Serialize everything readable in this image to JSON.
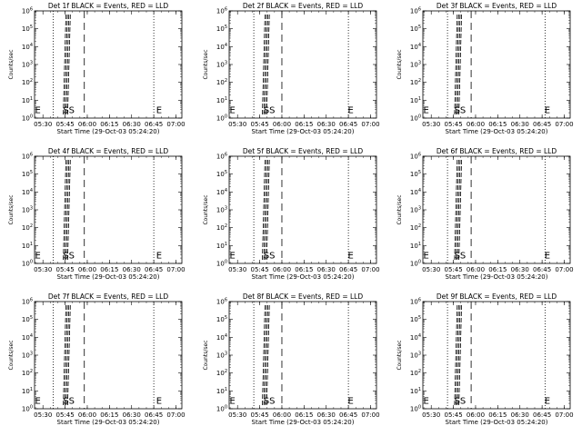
{
  "chart_data": [
    {
      "type": "line",
      "title": "Det 1f BLACK = Events, RED = LLD",
      "xlabel": "Start Time (29-Oct-03 05:24:20)",
      "ylabel": "Counts/sec",
      "x_tick_labels": [
        "05:30",
        "05:45",
        "06:00",
        "06:15",
        "06:30",
        "06:45",
        "07:00"
      ],
      "y_tick_labels": [
        "10^0",
        "10^1",
        "10^2",
        "10^3",
        "10^4",
        "10^5",
        "10^6"
      ],
      "y_scale": "log",
      "ylim": [
        1,
        1000000
      ],
      "xlim": [
        "05:24:20",
        "07:04"
      ],
      "vertical_lines": [
        {
          "x": "05:37",
          "style": "dotted"
        },
        {
          "x": "05:45",
          "style": "dashed-cluster"
        },
        {
          "x": "05:58",
          "style": "dashed"
        },
        {
          "x": "06:45",
          "style": "dotted"
        }
      ],
      "annotations": [
        {
          "text": "E",
          "x": "05:24",
          "y": 3
        },
        {
          "text": "E",
          "x": "06:46",
          "y": 3
        },
        {
          "text": "SS",
          "x": "05:43",
          "y": 3
        }
      ]
    },
    {
      "type": "line",
      "title": "Det 2f BLACK = Events, RED = LLD",
      "xlabel": "Start Time (29-Oct-03 05:24:20)",
      "ylabel": "Counts/sec",
      "x_tick_labels": [
        "05:30",
        "05:45",
        "06:00",
        "06:15",
        "06:30",
        "06:45",
        "07:00"
      ],
      "y_tick_labels": [
        "10^0",
        "10^1",
        "10^2",
        "10^3",
        "10^4",
        "10^5",
        "10^6"
      ],
      "y_scale": "log",
      "ylim": [
        1,
        1000000
      ],
      "xlim": [
        "05:24:20",
        "07:04"
      ],
      "vertical_lines": [
        {
          "x": "05:41",
          "style": "dotted"
        },
        {
          "x": "05:48",
          "style": "dashed-cluster"
        },
        {
          "x": "06:00",
          "style": "dashed"
        },
        {
          "x": "06:45",
          "style": "dotted"
        }
      ],
      "annotations": [
        {
          "text": "E",
          "x": "05:24",
          "y": 3
        },
        {
          "text": "E",
          "x": "06:44",
          "y": 3
        },
        {
          "text": "SS",
          "x": "05:47",
          "y": 3
        }
      ]
    },
    {
      "type": "line",
      "title": "Det 3f BLACK = Events, RED = LLD",
      "xlabel": "Start Time (29-Oct-03 05:24:20)",
      "ylabel": "Counts/sec",
      "x_tick_labels": [
        "05:30",
        "05:45",
        "06:00",
        "06:15",
        "06:30",
        "06:45",
        "07:00"
      ],
      "y_tick_labels": [
        "10^0",
        "10^1",
        "10^2",
        "10^3",
        "10^4",
        "10^5",
        "10^6"
      ],
      "y_scale": "log",
      "ylim": [
        1,
        1000000
      ],
      "xlim": [
        "05:24:20",
        "07:04"
      ],
      "vertical_lines": [
        {
          "x": "05:41",
          "style": "dotted"
        },
        {
          "x": "05:47",
          "style": "dashed-cluster"
        },
        {
          "x": "05:57",
          "style": "dashed"
        },
        {
          "x": "06:47",
          "style": "dotted"
        }
      ],
      "annotations": [
        {
          "text": "E",
          "x": "05:24",
          "y": 3
        },
        {
          "text": "E",
          "x": "06:46",
          "y": 3
        },
        {
          "text": "SS",
          "x": "05:45",
          "y": 3
        }
      ]
    },
    {
      "type": "line",
      "title": "Det 4f BLACK = Events, RED = LLD",
      "xlabel": "Start Time (29-Oct-03 05:24:20)",
      "ylabel": "Counts/sec",
      "x_tick_labels": [
        "05:30",
        "05:45",
        "06:00",
        "06:15",
        "06:30",
        "06:45",
        "07:00"
      ],
      "y_tick_labels": [
        "10^0",
        "10^1",
        "10^2",
        "10^3",
        "10^4",
        "10^5",
        "10^6"
      ],
      "y_scale": "log",
      "ylim": [
        1,
        1000000
      ],
      "xlim": [
        "05:24:20",
        "07:04"
      ],
      "vertical_lines": [
        {
          "x": "05:37",
          "style": "dotted"
        },
        {
          "x": "05:45",
          "style": "dashed-cluster"
        },
        {
          "x": "05:58",
          "style": "dashed"
        },
        {
          "x": "06:45",
          "style": "dotted"
        }
      ],
      "annotations": [
        {
          "text": "E",
          "x": "05:24",
          "y": 3
        },
        {
          "text": "E",
          "x": "06:46",
          "y": 3
        },
        {
          "text": "SS",
          "x": "05:43",
          "y": 3
        }
      ]
    },
    {
      "type": "line",
      "title": "Det 5f BLACK = Events, RED = LLD",
      "xlabel": "Start Time (29-Oct-03 05:24:20)",
      "ylabel": "Counts/sec",
      "x_tick_labels": [
        "05:30",
        "05:45",
        "06:00",
        "06:15",
        "06:30",
        "06:45",
        "07:00"
      ],
      "y_tick_labels": [
        "10^0",
        "10^1",
        "10^2",
        "10^3",
        "10^4",
        "10^5",
        "10^6"
      ],
      "y_scale": "log",
      "ylim": [
        1,
        1000000
      ],
      "xlim": [
        "05:24:20",
        "07:04"
      ],
      "vertical_lines": [
        {
          "x": "05:41",
          "style": "dotted"
        },
        {
          "x": "05:48",
          "style": "dashed-cluster"
        },
        {
          "x": "06:00",
          "style": "dashed"
        },
        {
          "x": "06:45",
          "style": "dotted"
        }
      ],
      "annotations": [
        {
          "text": "E",
          "x": "05:24",
          "y": 3
        },
        {
          "text": "E",
          "x": "06:44",
          "y": 3
        },
        {
          "text": "SS",
          "x": "05:47",
          "y": 3
        }
      ]
    },
    {
      "type": "line",
      "title": "Det 6f BLACK = Events, RED = LLD",
      "xlabel": "Start Time (29-Oct-03 05:24:20)",
      "ylabel": "Counts/sec",
      "x_tick_labels": [
        "05:30",
        "05:45",
        "06:00",
        "06:15",
        "06:30",
        "06:45",
        "07:00"
      ],
      "y_tick_labels": [
        "10^0",
        "10^1",
        "10^2",
        "10^3",
        "10^4",
        "10^5",
        "10^6"
      ],
      "y_scale": "log",
      "ylim": [
        1,
        1000000
      ],
      "xlim": [
        "05:24:20",
        "07:04"
      ],
      "vertical_lines": [
        {
          "x": "05:41",
          "style": "dotted"
        },
        {
          "x": "05:47",
          "style": "dashed-cluster"
        },
        {
          "x": "05:57",
          "style": "dashed"
        },
        {
          "x": "06:47",
          "style": "dotted"
        }
      ],
      "annotations": [
        {
          "text": "E",
          "x": "05:24",
          "y": 3
        },
        {
          "text": "E",
          "x": "06:46",
          "y": 3
        },
        {
          "text": "SS",
          "x": "05:45",
          "y": 3
        }
      ]
    },
    {
      "type": "line",
      "title": "Det 7f BLACK = Events, RED = LLD",
      "xlabel": "Start Time (29-Oct-03 05:24:20)",
      "ylabel": "Counts/sec",
      "x_tick_labels": [
        "05:30",
        "05:45",
        "06:00",
        "06:15",
        "06:30",
        "06:45",
        "07:00"
      ],
      "y_tick_labels": [
        "10^0",
        "10^1",
        "10^2",
        "10^3",
        "10^4",
        "10^5",
        "10^6"
      ],
      "y_scale": "log",
      "ylim": [
        1,
        1000000
      ],
      "xlim": [
        "05:24:20",
        "07:04"
      ],
      "vertical_lines": [
        {
          "x": "05:37",
          "style": "dotted"
        },
        {
          "x": "05:45",
          "style": "dashed-cluster"
        },
        {
          "x": "05:58",
          "style": "dashed"
        },
        {
          "x": "06:45",
          "style": "dotted"
        }
      ],
      "annotations": [
        {
          "text": "E",
          "x": "05:24",
          "y": 3
        },
        {
          "text": "E",
          "x": "06:46",
          "y": 3
        },
        {
          "text": "SS",
          "x": "05:43",
          "y": 3
        }
      ]
    },
    {
      "type": "line",
      "title": "Det 8f BLACK = Events, RED = LLD",
      "xlabel": "Start Time (29-Oct-03 05:24:20)",
      "ylabel": "Counts/sec",
      "x_tick_labels": [
        "05:30",
        "05:45",
        "06:00",
        "06:15",
        "06:30",
        "06:45",
        "07:00"
      ],
      "y_tick_labels": [
        "10^0",
        "10^1",
        "10^2",
        "10^3",
        "10^4",
        "10^5",
        "10^6"
      ],
      "y_scale": "log",
      "ylim": [
        1,
        1000000
      ],
      "xlim": [
        "05:24:20",
        "07:04"
      ],
      "vertical_lines": [
        {
          "x": "05:41",
          "style": "dotted"
        },
        {
          "x": "05:48",
          "style": "dashed-cluster"
        },
        {
          "x": "06:00",
          "style": "dashed"
        },
        {
          "x": "06:45",
          "style": "dotted"
        }
      ],
      "annotations": [
        {
          "text": "E",
          "x": "05:24",
          "y": 3
        },
        {
          "text": "E",
          "x": "06:44",
          "y": 3
        },
        {
          "text": "SS",
          "x": "05:47",
          "y": 3
        }
      ]
    },
    {
      "type": "line",
      "title": "Det 9f BLACK = Events, RED = LLD",
      "xlabel": "Start Time (29-Oct-03 05:24:20)",
      "ylabel": "Counts/sec",
      "x_tick_labels": [
        "05:30",
        "05:45",
        "06:00",
        "06:15",
        "06:30",
        "06:45",
        "07:00"
      ],
      "y_tick_labels": [
        "10^0",
        "10^1",
        "10^2",
        "10^3",
        "10^4",
        "10^5",
        "10^6"
      ],
      "y_scale": "log",
      "ylim": [
        1,
        1000000
      ],
      "xlim": [
        "05:24:20",
        "07:04"
      ],
      "vertical_lines": [
        {
          "x": "05:41",
          "style": "dotted"
        },
        {
          "x": "05:47",
          "style": "dashed-cluster"
        },
        {
          "x": "05:57",
          "style": "dashed"
        },
        {
          "x": "06:47",
          "style": "dotted"
        }
      ],
      "annotations": [
        {
          "text": "E",
          "x": "05:24",
          "y": 3
        },
        {
          "text": "E",
          "x": "06:46",
          "y": 3
        },
        {
          "text": "SS",
          "x": "05:45",
          "y": 3
        }
      ]
    }
  ]
}
